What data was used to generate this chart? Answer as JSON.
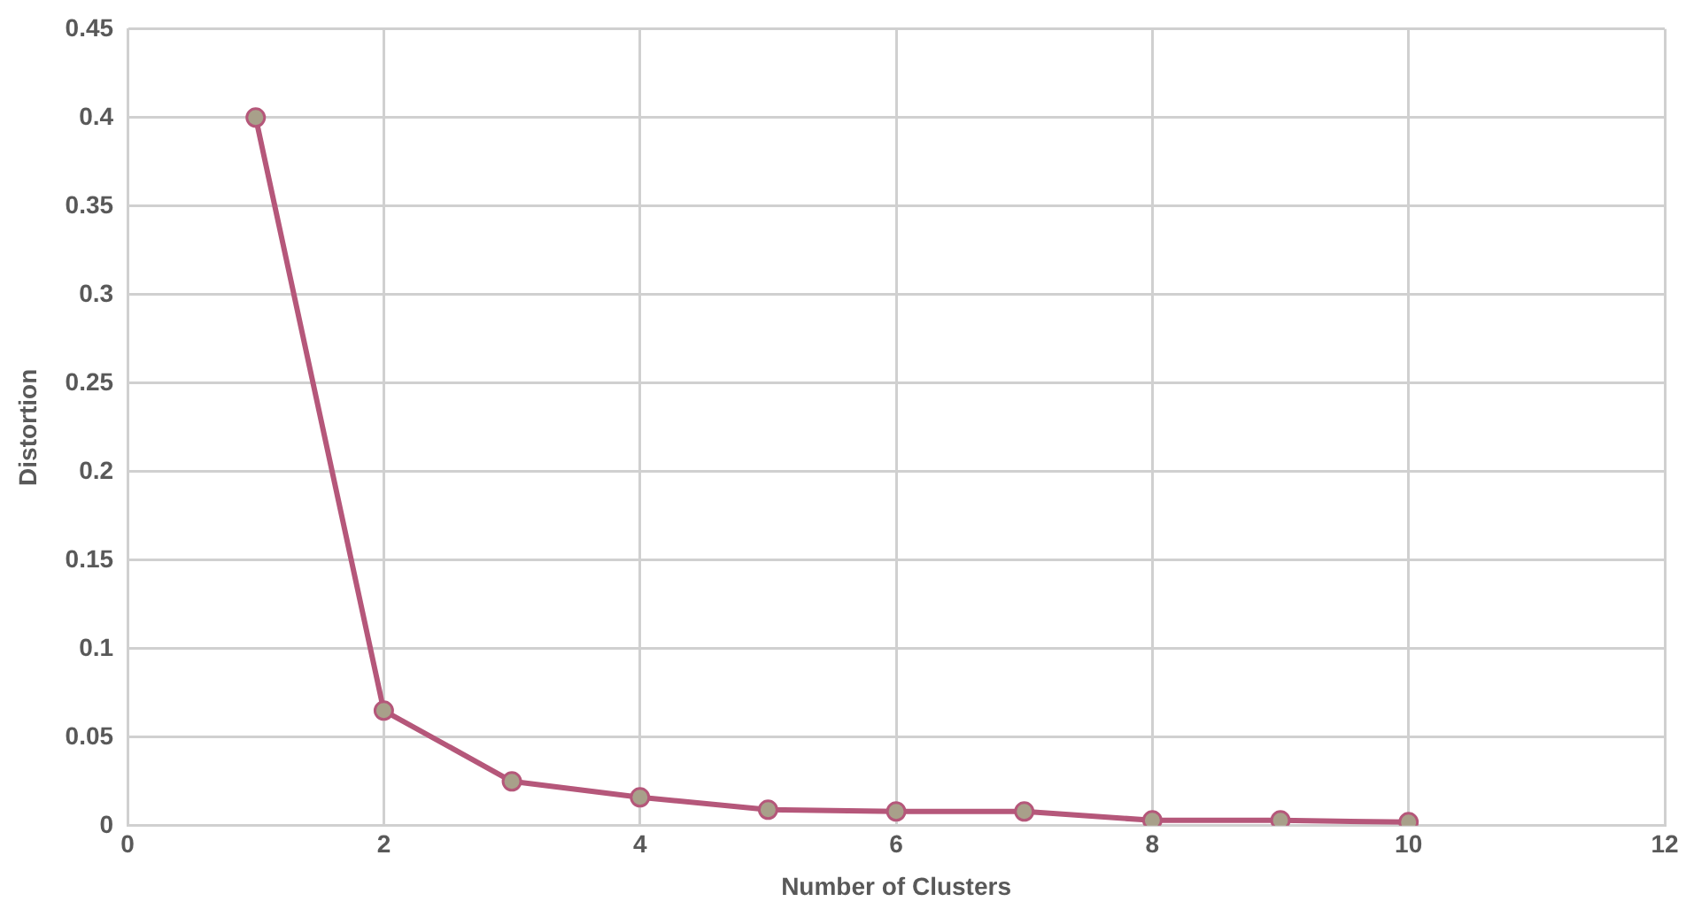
{
  "chart_data": {
    "type": "line",
    "xlabel": "Number of Clusters",
    "ylabel": "Distortion",
    "x": [
      1,
      2,
      3,
      4,
      5,
      6,
      7,
      8,
      9,
      10
    ],
    "series": [
      {
        "color": "#b5577a",
        "values": [
          0.4,
          0.065,
          0.025,
          0.016,
          0.009,
          0.008,
          0.008,
          0.003,
          0.003,
          0.002
        ]
      }
    ],
    "xlim": [
      0,
      12
    ],
    "xticks": [
      0,
      2,
      4,
      6,
      8,
      10,
      12
    ],
    "ylim": [
      0,
      0.45
    ],
    "yticks": [
      0,
      0.05,
      0.1,
      0.15,
      0.2,
      0.25,
      0.3,
      0.35,
      0.4,
      0.45
    ],
    "grid": true,
    "legend": false,
    "marker": "circle",
    "line_style": "solid"
  }
}
